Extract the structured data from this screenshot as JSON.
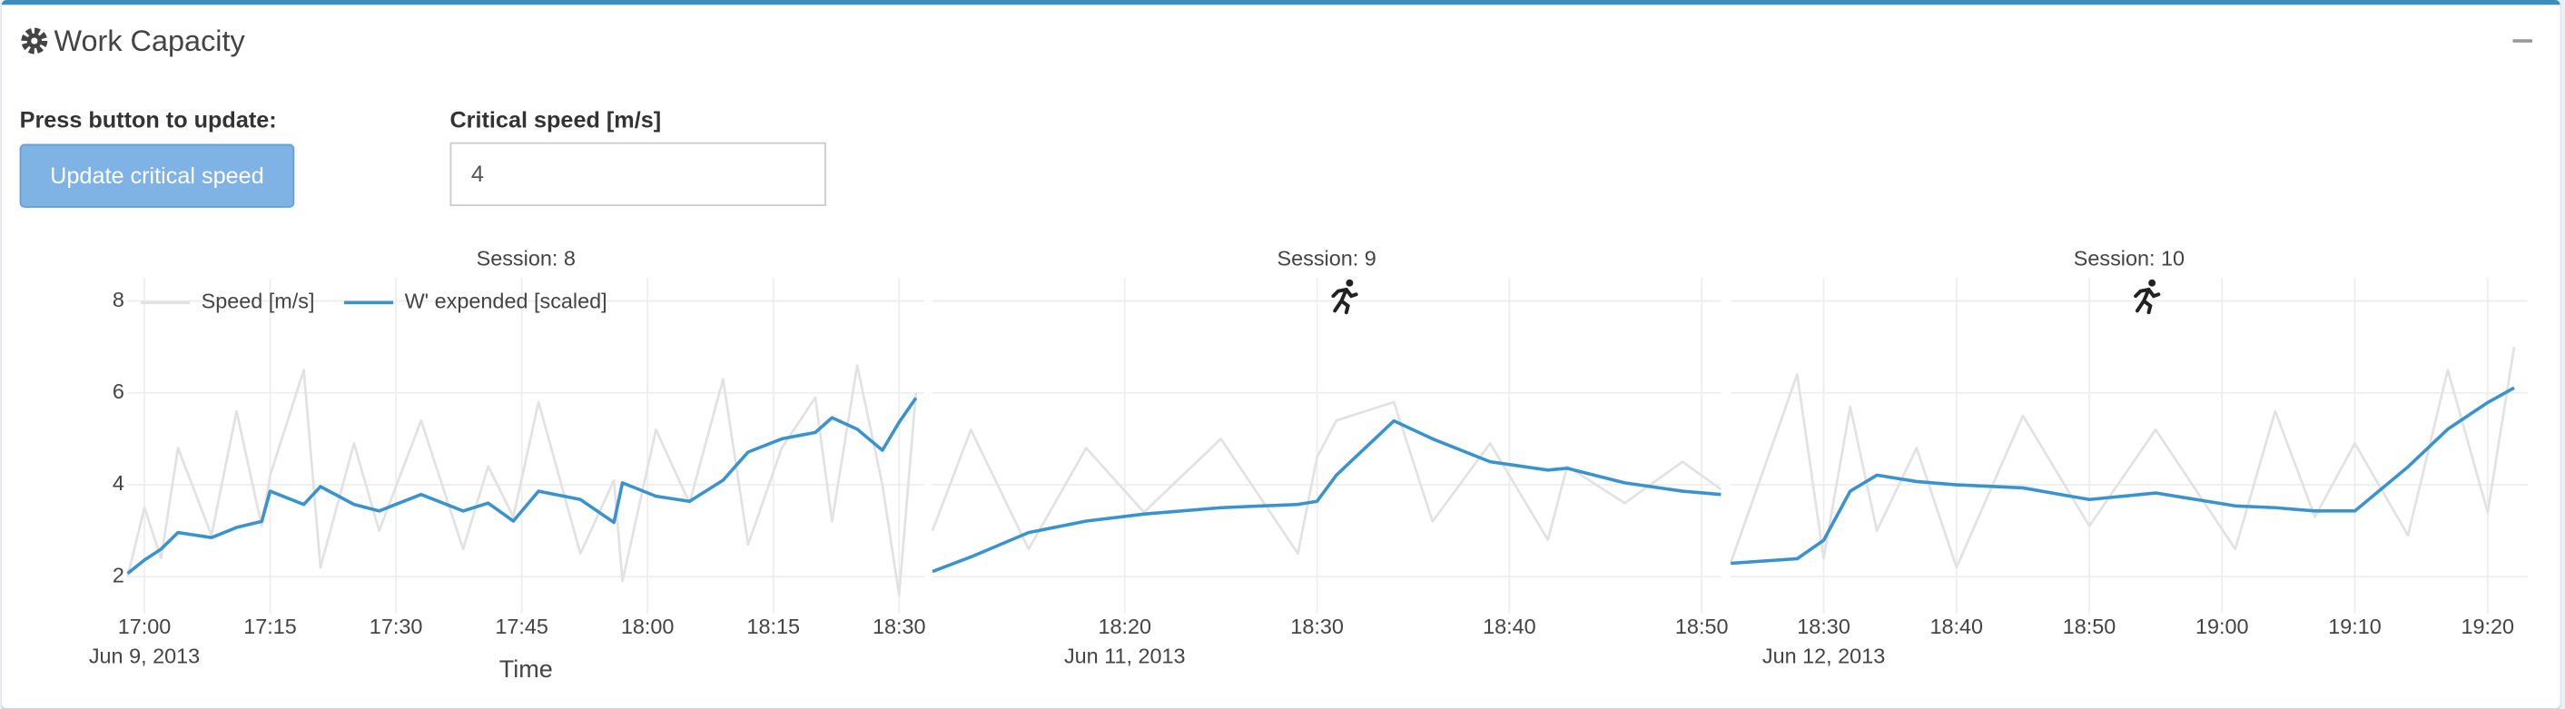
{
  "header": {
    "title": "Work Capacity"
  },
  "controls": {
    "button_label": "Press button to update:",
    "button_text": "Update critical speed",
    "input_label": "Critical speed [m/s]",
    "input_value": "4"
  },
  "chart_data": [
    {
      "type": "line",
      "title": "Session: 8",
      "xlabel": "Time",
      "date_label": "Jun 9, 2013",
      "legend": true,
      "show_ytick_labels": true,
      "grid": true,
      "xlim": [
        "2013-06-09 16:58",
        "2013-06-09 18:33"
      ],
      "xticks": [
        {
          "value": "2013-06-09 17:00",
          "label": "17:00"
        },
        {
          "value": "2013-06-09 17:15",
          "label": "17:15"
        },
        {
          "value": "2013-06-09 17:30",
          "label": "17:30"
        },
        {
          "value": "2013-06-09 17:45",
          "label": "17:45"
        },
        {
          "value": "2013-06-09 18:00",
          "label": "18:00"
        },
        {
          "value": "2013-06-09 18:15",
          "label": "18:15"
        },
        {
          "value": "2013-06-09 18:30",
          "label": "18:30"
        }
      ],
      "ylim": [
        1.2,
        8.5
      ],
      "yticks": [
        2,
        4,
        6,
        8
      ],
      "x": [
        "2013-06-09 16:58",
        "2013-06-09 17:00",
        "2013-06-09 17:02",
        "2013-06-09 17:04",
        "2013-06-09 17:08",
        "2013-06-09 17:11",
        "2013-06-09 17:14",
        "2013-06-09 17:15",
        "2013-06-09 17:19",
        "2013-06-09 17:21",
        "2013-06-09 17:25",
        "2013-06-09 17:28",
        "2013-06-09 17:33",
        "2013-06-09 17:38",
        "2013-06-09 17:41",
        "2013-06-09 17:44",
        "2013-06-09 17:47",
        "2013-06-09 17:52",
        "2013-06-09 17:56",
        "2013-06-09 17:57",
        "2013-06-09 18:01",
        "2013-06-09 18:05",
        "2013-06-09 18:09",
        "2013-06-09 18:12",
        "2013-06-09 18:16",
        "2013-06-09 18:20",
        "2013-06-09 18:22",
        "2013-06-09 18:25",
        "2013-06-09 18:28",
        "2013-06-09 18:30",
        "2013-06-09 18:32"
      ],
      "series": [
        {
          "name": "Speed [m/s]",
          "color": "#e2e2e2",
          "values": [
            2.0,
            3.5,
            2.4,
            4.8,
            2.9,
            5.6,
            3.1,
            4.2,
            6.5,
            2.2,
            4.9,
            3.0,
            5.4,
            2.6,
            4.4,
            3.3,
            5.8,
            2.5,
            4.1,
            1.9,
            5.2,
            3.6,
            6.3,
            2.7,
            4.8,
            5.9,
            3.2,
            6.6,
            4.0,
            1.6,
            6.0
          ]
        },
        {
          "name": "W' expended [scaled]",
          "color": "#3a93cc",
          "values": [
            2.07,
            2.36,
            2.6,
            2.96,
            2.85,
            3.07,
            3.2,
            3.86,
            3.57,
            3.96,
            3.57,
            3.43,
            3.79,
            3.43,
            3.6,
            3.21,
            3.86,
            3.68,
            3.18,
            4.04,
            3.75,
            3.64,
            4.1,
            4.71,
            5.0,
            5.14,
            5.46,
            5.21,
            4.75,
            5.36,
            5.89
          ]
        }
      ]
    },
    {
      "type": "line",
      "title": "Session: 9",
      "date_label": "Jun 11, 2013",
      "show_ytick_labels": false,
      "grid": true,
      "xlim": [
        "2013-06-11 18:10",
        "2013-06-11 18:51"
      ],
      "xticks": [
        {
          "value": "2013-06-11 18:20",
          "label": "18:20"
        },
        {
          "value": "2013-06-11 18:30",
          "label": "18:30"
        },
        {
          "value": "2013-06-11 18:40",
          "label": "18:40"
        },
        {
          "value": "2013-06-11 18:50",
          "label": "18:50"
        }
      ],
      "ylim": [
        1.2,
        8.5
      ],
      "yticks": [
        2,
        4,
        6,
        8
      ],
      "x": [
        "2013-06-11 18:10",
        "2013-06-11 18:12",
        "2013-06-11 18:15",
        "2013-06-11 18:18",
        "2013-06-11 18:21",
        "2013-06-11 18:25",
        "2013-06-11 18:29",
        "2013-06-11 18:30",
        "2013-06-11 18:31",
        "2013-06-11 18:34",
        "2013-06-11 18:36",
        "2013-06-11 18:39",
        "2013-06-11 18:42",
        "2013-06-11 18:43",
        "2013-06-11 18:46",
        "2013-06-11 18:49",
        "2013-06-11 18:51"
      ],
      "series": [
        {
          "color": "#e2e2e2",
          "values": [
            3.0,
            5.2,
            2.6,
            4.8,
            3.4,
            5.0,
            2.5,
            4.6,
            5.4,
            5.8,
            3.2,
            4.9,
            2.8,
            4.4,
            3.6,
            4.5,
            3.9
          ]
        },
        {
          "color": "#3a93cc",
          "values": [
            2.11,
            2.43,
            2.96,
            3.21,
            3.36,
            3.5,
            3.57,
            3.64,
            4.21,
            5.39,
            5.0,
            4.5,
            4.32,
            4.36,
            4.04,
            3.86,
            3.79
          ]
        }
      ]
    },
    {
      "type": "line",
      "title": "Session: 10",
      "date_label": "Jun 12, 2013",
      "show_ytick_labels": false,
      "grid": true,
      "xlim": [
        "2013-06-12 18:23",
        "2013-06-12 19:23"
      ],
      "xticks": [
        {
          "value": "2013-06-12 18:30",
          "label": "18:30"
        },
        {
          "value": "2013-06-12 18:40",
          "label": "18:40"
        },
        {
          "value": "2013-06-12 18:50",
          "label": "18:50"
        },
        {
          "value": "2013-06-12 19:00",
          "label": "19:00"
        },
        {
          "value": "2013-06-12 19:10",
          "label": "19:10"
        },
        {
          "value": "2013-06-12 19:20",
          "label": "19:20"
        }
      ],
      "ylim": [
        1.2,
        8.5
      ],
      "yticks": [
        2,
        4,
        6,
        8
      ],
      "x": [
        "2013-06-12 18:23",
        "2013-06-12 18:28",
        "2013-06-12 18:30",
        "2013-06-12 18:32",
        "2013-06-12 18:34",
        "2013-06-12 18:37",
        "2013-06-12 18:40",
        "2013-06-12 18:45",
        "2013-06-12 18:50",
        "2013-06-12 18:55",
        "2013-06-12 19:01",
        "2013-06-12 19:04",
        "2013-06-12 19:07",
        "2013-06-12 19:10",
        "2013-06-12 19:14",
        "2013-06-12 19:17",
        "2013-06-12 19:20",
        "2013-06-12 19:22"
      ],
      "series": [
        {
          "color": "#e2e2e2",
          "values": [
            2.3,
            6.4,
            2.4,
            5.7,
            3.0,
            4.8,
            2.2,
            5.5,
            3.1,
            5.2,
            2.6,
            5.6,
            3.3,
            4.9,
            2.9,
            6.5,
            3.4,
            7.0
          ]
        },
        {
          "color": "#3a93cc",
          "values": [
            2.29,
            2.39,
            2.79,
            3.86,
            4.21,
            4.07,
            4.0,
            3.93,
            3.68,
            3.82,
            3.54,
            3.5,
            3.43,
            3.43,
            4.39,
            5.21,
            5.79,
            6.11
          ]
        }
      ]
    }
  ]
}
